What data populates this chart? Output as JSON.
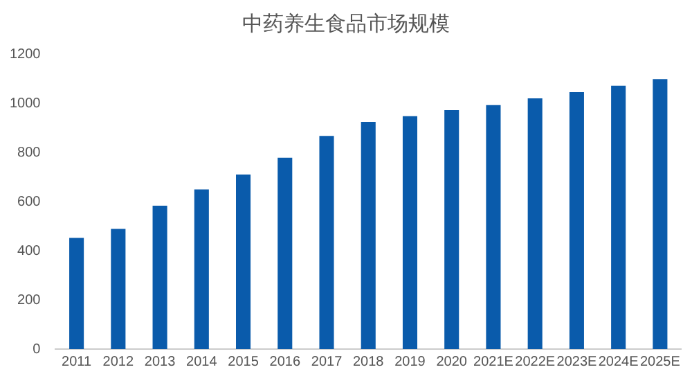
{
  "chart_data": {
    "type": "bar",
    "title": "中药养生食品市场规模",
    "categories": [
      "2011",
      "2012",
      "2013",
      "2014",
      "2015",
      "2016",
      "2017",
      "2018",
      "2019",
      "2020",
      "2021E",
      "2022E",
      "2023E",
      "2024E",
      "2025E"
    ],
    "values": [
      452,
      489,
      583,
      649,
      710,
      778,
      867,
      924,
      947,
      972,
      992,
      1020,
      1045,
      1071,
      1098
    ],
    "color": "#0a5bab",
    "ylim": [
      0,
      1200
    ],
    "yticks": [
      0,
      200,
      400,
      600,
      800,
      1000,
      1200
    ],
    "grid": false
  }
}
